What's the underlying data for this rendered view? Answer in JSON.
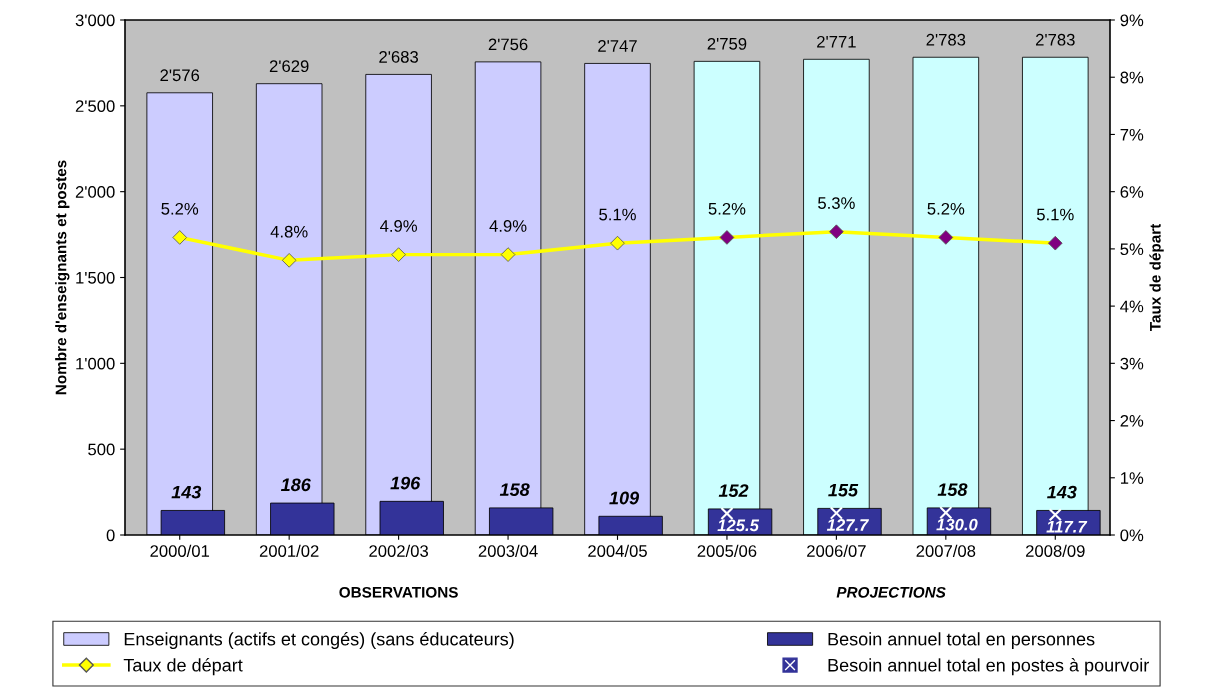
{
  "chart_data": {
    "type": "bar",
    "categories": [
      "2000/01",
      "2001/02",
      "2002/03",
      "2003/04",
      "2004/05",
      "2005/06",
      "2006/07",
      "2007/08",
      "2008/09"
    ],
    "ylabel": "Nombre d'enseignants et postes",
    "y2label": "Taux de départ",
    "ylim": [
      0,
      3000
    ],
    "yticks": [
      0,
      500,
      {
        "value": 1000,
        "label": "1'000"
      },
      {
        "value": 1500,
        "label": "1'500"
      },
      {
        "value": 2000,
        "label": "2'000"
      },
      {
        "value": 2500,
        "label": "2'500"
      },
      {
        "value": 3000,
        "label": "3'000"
      }
    ],
    "y2lim": [
      0,
      9
    ],
    "y2ticks": [
      {
        "value": 0,
        "label": "0%"
      },
      {
        "value": 1,
        "label": "1%"
      },
      {
        "value": 2,
        "label": "2%"
      },
      {
        "value": 3,
        "label": "3%"
      },
      {
        "value": 4,
        "label": "4%"
      },
      {
        "value": 5,
        "label": "5%"
      },
      {
        "value": 6,
        "label": "6%"
      },
      {
        "value": 7,
        "label": "7%"
      },
      {
        "value": 8,
        "label": "8%"
      },
      {
        "value": 9,
        "label": "9%"
      }
    ],
    "grid": false,
    "legend": "bottom",
    "annotations": [
      "OBSERVATIONS",
      "PROJECTIONS"
    ],
    "series": [
      {
        "name": "Enseignants (actifs et congés) (sans éducateurs)",
        "colors": [
          "#ccccff",
          "#ccccff",
          "#ccccff",
          "#ccccff",
          "#ccccff",
          "#ccffff",
          "#ccffff",
          "#ccffff",
          "#ccffff"
        ],
        "values": [
          2576,
          2629,
          2683,
          2756,
          2747,
          2759,
          2771,
          2783,
          2783
        ],
        "value_labels": [
          "2'576",
          "2'629",
          "2'683",
          "2'756",
          "2'747",
          "2'759",
          "2'771",
          "2'783",
          "2'783"
        ]
      },
      {
        "name": "Besoin annuel total en personnes",
        "color": "#333399",
        "values": [
          143,
          186,
          196,
          158,
          109,
          152,
          155,
          158,
          143
        ],
        "value_labels": [
          "143",
          "186",
          "196",
          "158",
          "109",
          "152",
          "155",
          "158",
          "143"
        ]
      },
      {
        "name": "Taux de départ",
        "type": "line",
        "axis": "y2",
        "color": "#ffff00",
        "marker": "diamond",
        "colors": [
          "#ffff00",
          "#ffff00",
          "#ffff00",
          "#ffff00",
          "#ffff00",
          "#800080",
          "#800080",
          "#800080",
          "#800080"
        ],
        "values": [
          5.2,
          4.8,
          4.9,
          4.9,
          5.1,
          5.2,
          5.3,
          5.2,
          5.1
        ],
        "value_labels": [
          "5.2%",
          "4.8%",
          "4.9%",
          "4.9%",
          "5.1%",
          "5.2%",
          "5.3%",
          "5.2%",
          "5.1%"
        ]
      },
      {
        "name": "Besoin annuel total en postes à pourvoir",
        "type": "scatter",
        "color": "#ffffff",
        "marker": "cross",
        "values": [
          null,
          null,
          null,
          null,
          null,
          125.5,
          127.7,
          130.0,
          117.7
        ],
        "value_labels": [
          null,
          null,
          null,
          null,
          null,
          "125.5",
          "127.7",
          "130.0",
          "117.7"
        ]
      }
    ]
  }
}
